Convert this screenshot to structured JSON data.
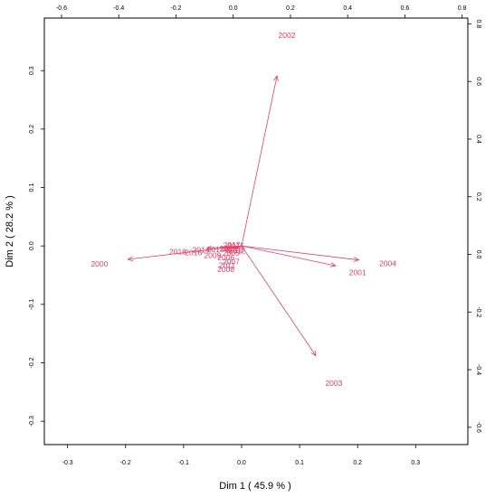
{
  "chart_data": {
    "type": "scatter",
    "title": "",
    "xlabel": "Dim 1  ( 45.9  % )",
    "ylabel": "Dim 2  ( 28.2  % )",
    "xlim": [
      -0.34,
      0.39
    ],
    "ylim": [
      -0.34,
      0.39
    ],
    "x_ticks": [
      "-0.3",
      "-0.2",
      "-0.1",
      "0.0",
      "0.1",
      "0.2",
      "0.3"
    ],
    "y_ticks": [
      "-0.3",
      "-0.2",
      "-0.1",
      "0.0",
      "0.1",
      "0.2",
      "0.3"
    ],
    "top_axis": {
      "lim": [
        -0.66,
        0.82
      ],
      "ticks": [
        "-0.6",
        "-0.4",
        "-0.2",
        "0.0",
        "0.2",
        "0.4",
        "0.6",
        "0.8"
      ]
    },
    "right_axis": {
      "lim": [
        -0.66,
        0.82
      ],
      "ticks": [
        "-0.6",
        "-0.4",
        "-0.2",
        "0.0",
        "0.2",
        "0.4",
        "0.6",
        "0.8"
      ]
    },
    "grid": false,
    "color": "#e0406a",
    "points": [
      {
        "label": "2000",
        "x": -0.245,
        "y": -0.031
      },
      {
        "label": "2001",
        "x": 0.2,
        "y": -0.045
      },
      {
        "label": "2002",
        "x": 0.078,
        "y": 0.361
      },
      {
        "label": "2003",
        "x": 0.159,
        "y": -0.235
      },
      {
        "label": "2004",
        "x": 0.252,
        "y": -0.03
      },
      {
        "label": "2005",
        "x": -0.018,
        "y": -0.012
      },
      {
        "label": "2006",
        "x": -0.027,
        "y": -0.02
      },
      {
        "label": "2007",
        "x": -0.018,
        "y": -0.027
      },
      {
        "label": "2008",
        "x": -0.027,
        "y": -0.04
      },
      {
        "label": "2009",
        "x": -0.05,
        "y": -0.016
      },
      {
        "label": "2010",
        "x": -0.023,
        "y": -0.004
      },
      {
        "label": "2011",
        "x": -0.025,
        "y": -0.033
      },
      {
        "label": "2012",
        "x": -0.008,
        "y": -0.008
      },
      {
        "label": "2013",
        "x": -0.045,
        "y": -0.006
      },
      {
        "label": "2014",
        "x": -0.07,
        "y": -0.007
      },
      {
        "label": "2015",
        "x": -0.01,
        "y": 0.0
      },
      {
        "label": "2016",
        "x": -0.083,
        "y": -0.011
      },
      {
        "label": "2017",
        "x": -0.017,
        "y": 0.002
      },
      {
        "label": "2018",
        "x": -0.11,
        "y": -0.01
      },
      {
        "label": "2019",
        "x": -0.012,
        "y": -0.007
      }
    ],
    "arrows": [
      {
        "label": "2000",
        "x": -0.196,
        "y": -0.023
      },
      {
        "label": "2001",
        "x": 0.162,
        "y": -0.034
      },
      {
        "label": "2002",
        "x": 0.061,
        "y": 0.291
      },
      {
        "label": "2003",
        "x": 0.128,
        "y": -0.188
      },
      {
        "label": "2004",
        "x": 0.202,
        "y": -0.024
      },
      {
        "label": "2005",
        "x": -0.012,
        "y": -0.006
      },
      {
        "label": "2009",
        "x": -0.03,
        "y": -0.008
      },
      {
        "label": "2013",
        "x": -0.03,
        "y": -0.003
      },
      {
        "label": "2018",
        "x": -0.06,
        "y": -0.004
      }
    ]
  }
}
